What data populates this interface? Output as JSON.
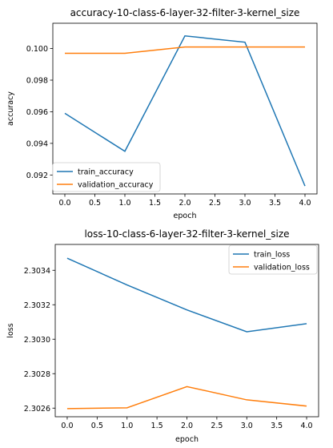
{
  "colors": {
    "train": "#1f77b4",
    "validation": "#ff7f0e"
  },
  "chart_data": [
    {
      "type": "line",
      "title": "accuracy-10-class-6-layer-32-filter-3-kernel_size",
      "xlabel": "epoch",
      "ylabel": "accuracy",
      "x": [
        0,
        1,
        2,
        3,
        4
      ],
      "xlim": [
        -0.2,
        4.2
      ],
      "ylim": [
        0.0908,
        0.1016
      ],
      "xticks": [
        "0.0",
        "0.5",
        "1.0",
        "1.5",
        "2.0",
        "2.5",
        "3.0",
        "3.5",
        "4.0"
      ],
      "yticks": [
        "0.092",
        "0.094",
        "0.096",
        "0.098",
        "0.100"
      ],
      "legend_position": "lower-left",
      "grid": false,
      "series": [
        {
          "name": "train_accuracy",
          "values": [
            0.0959,
            0.0935,
            0.1008,
            0.1004,
            0.0913
          ]
        },
        {
          "name": "validation_accuracy",
          "values": [
            0.0997,
            0.0997,
            0.1001,
            0.1001,
            0.1001
          ]
        }
      ]
    },
    {
      "type": "line",
      "title": "loss-10-class-6-layer-32-filter-3-kernel_size",
      "xlabel": "epoch",
      "ylabel": "loss",
      "x": [
        0,
        1,
        2,
        3,
        4
      ],
      "xlim": [
        -0.2,
        4.2
      ],
      "ylim": [
        2.30255,
        2.30355
      ],
      "xticks": [
        "0.0",
        "0.5",
        "1.0",
        "1.5",
        "2.0",
        "2.5",
        "3.0",
        "3.5",
        "4.0"
      ],
      "yticks": [
        "2.3026",
        "2.3028",
        "2.3030",
        "2.3032",
        "2.3034"
      ],
      "legend_position": "upper-right",
      "grid": false,
      "series": [
        {
          "name": "train_loss",
          "values": [
            2.30347,
            2.303315,
            2.30317,
            2.303043,
            2.30309
          ]
        },
        {
          "name": "validation_loss",
          "values": [
            2.302597,
            2.302602,
            2.302725,
            2.302648,
            2.302612
          ]
        }
      ]
    }
  ]
}
